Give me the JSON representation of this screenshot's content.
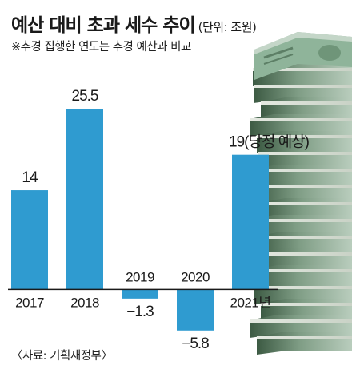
{
  "title": "예산 대비 초과 세수 추이",
  "unit_label": "(단위: 조원)",
  "note": "※추경 집행한 연도는 추경 예산과 비교",
  "source": "〈자료: 기획재정부〉",
  "colors": {
    "bar": "#2f9bd0",
    "axis": "#1a1a1a",
    "text": "#1a1a1a"
  },
  "chart_data": {
    "type": "bar",
    "categories": [
      "2017",
      "2018",
      "2019",
      "2020",
      "2021년"
    ],
    "values": [
      14,
      25.5,
      -1.3,
      -5.8,
      19
    ],
    "value_labels": [
      "14",
      "25.5",
      "−1.3",
      "−5.8",
      "19(당정 예상)"
    ],
    "title": "예산 대비 초과 세수 추이",
    "unit": "조원",
    "xlabel": "",
    "ylabel": "",
    "ylim": [
      -6.5,
      25.5
    ],
    "grid": false,
    "legend": "none"
  }
}
